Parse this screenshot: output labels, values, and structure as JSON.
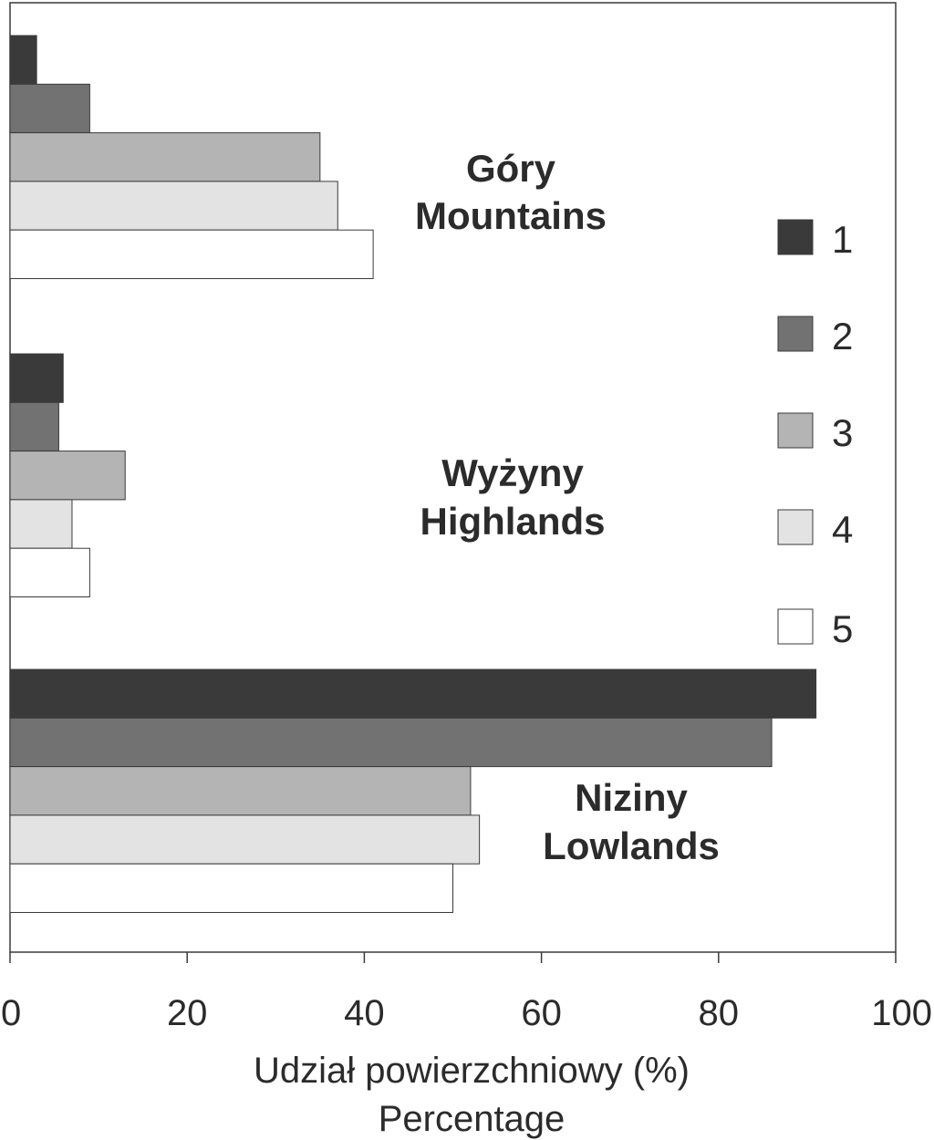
{
  "chart_data": {
    "type": "bar",
    "orientation": "horizontal",
    "groups": [
      {
        "line1": "Góry",
        "line2": "Mountains"
      },
      {
        "line1": "Wyżyny",
        "line2": "Highlands"
      },
      {
        "line1": "Niziny",
        "line2": "Lowlands"
      }
    ],
    "series": [
      {
        "name": "1",
        "color": "#3a3a3a",
        "values": [
          3,
          6,
          91
        ]
      },
      {
        "name": "2",
        "color": "#727272",
        "values": [
          9,
          5.5,
          86
        ]
      },
      {
        "name": "3",
        "color": "#b4b4b4",
        "values": [
          35,
          13,
          52
        ]
      },
      {
        "name": "4",
        "color": "#e3e3e3",
        "values": [
          37,
          7,
          53
        ]
      },
      {
        "name": "5",
        "color": "#ffffff",
        "values": [
          41,
          9,
          50
        ]
      }
    ],
    "x_ticks": [
      "0",
      "20",
      "40",
      "60",
      "80",
      "100"
    ],
    "xlim": [
      0,
      100
    ],
    "xlabel_line1": "Udział powierzchniowy (%)",
    "xlabel_line2": "Percentage",
    "grid": false,
    "legend_position": "right"
  }
}
